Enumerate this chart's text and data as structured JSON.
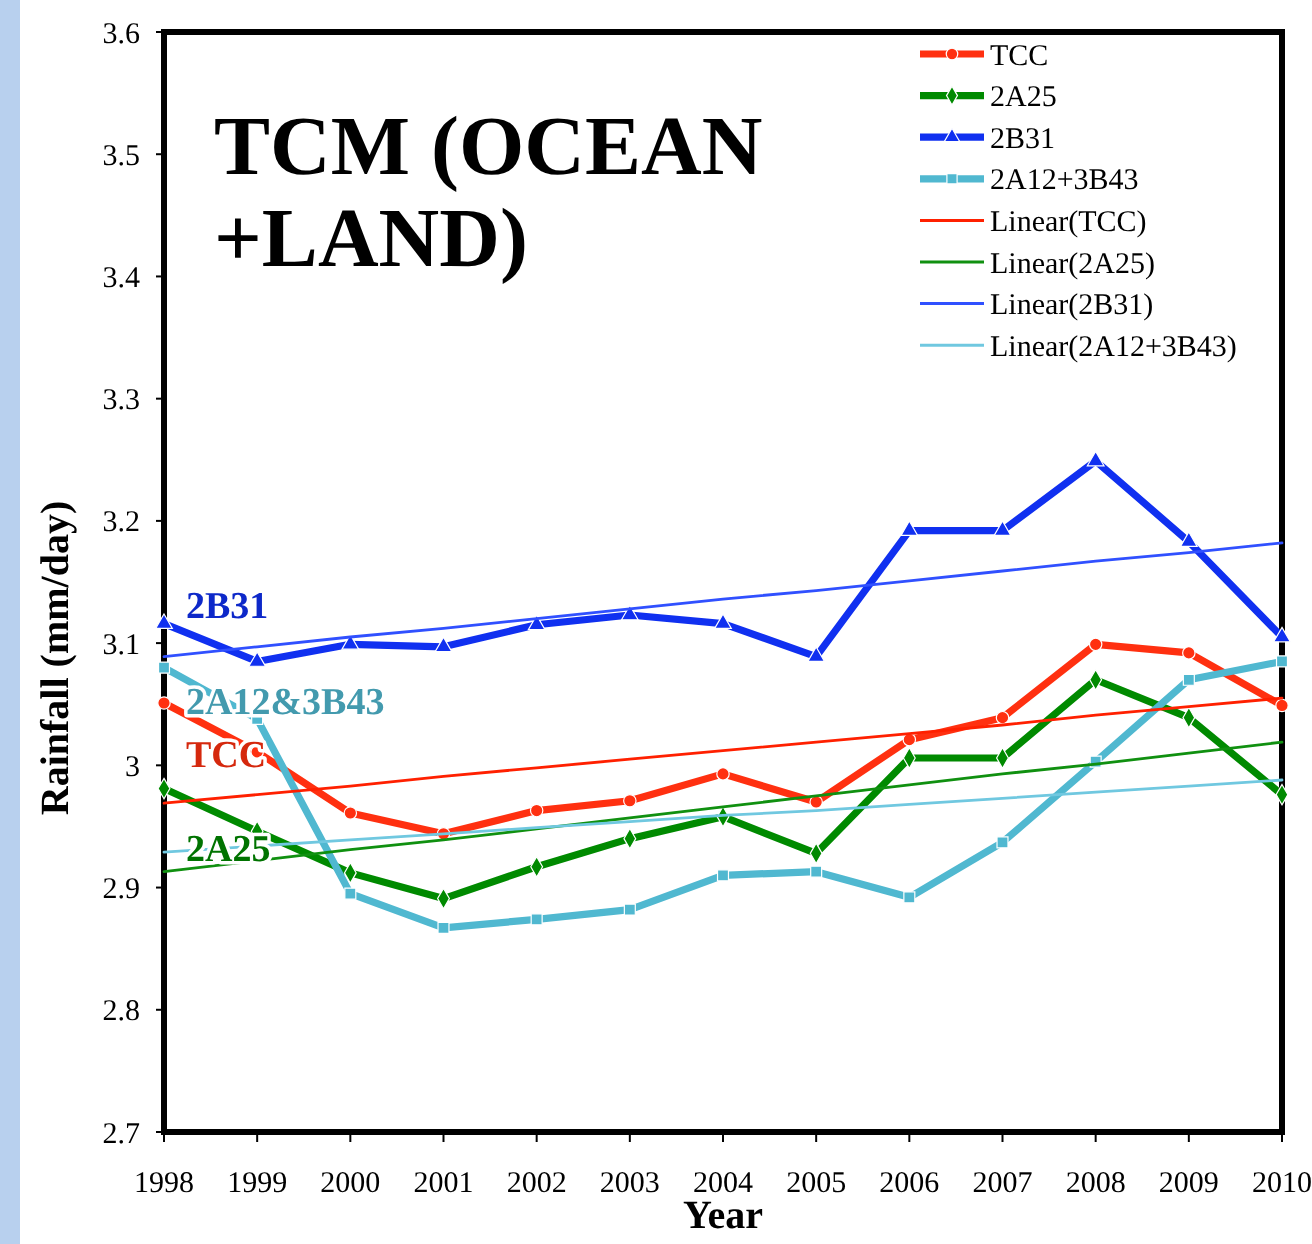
{
  "chart_data": {
    "type": "line",
    "title": "TCM (OCEAN +LAND)",
    "xlabel": "Year",
    "ylabel": "Rainfall (mm/day)",
    "x": [
      1998,
      1999,
      2000,
      2001,
      2002,
      2003,
      2004,
      2005,
      2006,
      2007,
      2008,
      2009,
      2010
    ],
    "series": [
      {
        "name": "TCC",
        "color": "#ff3010",
        "marker": "circle",
        "values": [
          3.051,
          3.011,
          2.961,
          2.944,
          2.963,
          2.971,
          2.993,
          2.97,
          3.021,
          3.039,
          3.099,
          3.092,
          3.049
        ]
      },
      {
        "name": "2A25",
        "color": "#008a00",
        "marker": "diamond",
        "values": [
          2.981,
          2.946,
          2.912,
          2.891,
          2.917,
          2.94,
          2.958,
          2.928,
          3.006,
          3.006,
          3.07,
          3.039,
          2.976
        ]
      },
      {
        "name": "2B31",
        "color": "#1030f0",
        "marker": "triangle",
        "values": [
          3.116,
          3.085,
          3.099,
          3.097,
          3.115,
          3.123,
          3.116,
          3.089,
          3.192,
          3.192,
          3.249,
          3.183,
          3.105
        ]
      },
      {
        "name": "2A12+3B43",
        "color": "#50b8d0",
        "marker": "square",
        "values": [
          3.08,
          3.038,
          2.895,
          2.867,
          2.874,
          2.882,
          2.91,
          2.913,
          2.892,
          2.937,
          3.003,
          3.07,
          3.085
        ]
      },
      {
        "name": "Linear(TCC)",
        "type": "line",
        "color": "#ff2000",
        "marker": "none",
        "values": [
          2.969,
          2.976,
          2.983,
          2.991,
          2.998,
          3.005,
          3.012,
          3.019,
          3.026,
          3.033,
          3.041,
          3.048,
          3.055
        ]
      },
      {
        "name": "Linear(2A25)",
        "type": "line",
        "color": "#109010",
        "marker": "none",
        "values": [
          2.913,
          2.922,
          2.931,
          2.939,
          2.948,
          2.957,
          2.966,
          2.975,
          2.984,
          2.993,
          3.001,
          3.01,
          3.019
        ]
      },
      {
        "name": "Linear(2B31)",
        "type": "line",
        "color": "#3050ff",
        "marker": "none",
        "values": [
          3.089,
          3.097,
          3.105,
          3.112,
          3.12,
          3.128,
          3.136,
          3.143,
          3.151,
          3.159,
          3.167,
          3.174,
          3.182
        ]
      },
      {
        "name": "Linear(2A12+3B43)",
        "type": "line",
        "color": "#70c8e0",
        "marker": "none",
        "values": [
          2.929,
          2.934,
          2.939,
          2.944,
          2.949,
          2.954,
          2.959,
          2.963,
          2.968,
          2.973,
          2.978,
          2.983,
          2.988
        ]
      }
    ],
    "annotations": [
      "TCC",
      "2A25",
      "2B31",
      "2A12&3B43"
    ],
    "xlim": [
      1998,
      2010
    ],
    "xticks": [
      1998,
      1999,
      2000,
      2001,
      2002,
      2003,
      2004,
      2005,
      2006,
      2007,
      2008,
      2009,
      2010
    ],
    "ylim": [
      2.7,
      3.6
    ],
    "yticks": [
      2.7,
      2.8,
      2.9,
      3,
      3.1,
      3.2,
      3.3,
      3.4,
      3.5,
      3.6
    ],
    "legend": "top right"
  }
}
